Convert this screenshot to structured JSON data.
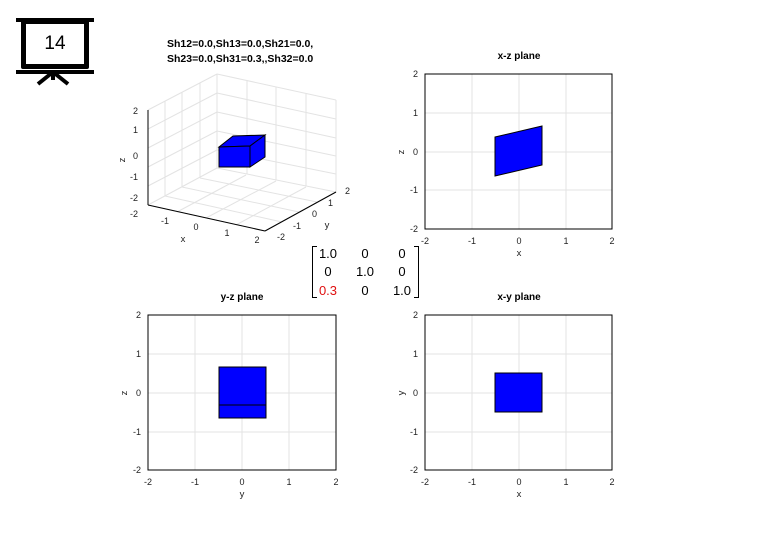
{
  "slide": {
    "number": "14"
  },
  "main_title": {
    "line1": "Sh12=0.0,Sh13=0.0,Sh21=0.0,",
    "line2": "Sh23=0.0,Sh31=0.3,,Sh32=0.0"
  },
  "plot3d": {
    "xlabel": "x",
    "ylabel": "y",
    "zlabel": "z",
    "x_ticks": [
      "-2",
      "-1",
      "0",
      "1",
      "2"
    ],
    "y_ticks": [
      "-2",
      "-1",
      "0",
      "1",
      "2"
    ],
    "z_ticks": [
      "-2",
      "-1",
      "0",
      "1",
      "2"
    ]
  },
  "xz": {
    "title": "x-z plane",
    "xlabel": "x",
    "ylabel": "z",
    "xticks": [
      "-2",
      "-1",
      "0",
      "1",
      "2"
    ],
    "yticks": [
      "-2",
      "-1",
      "0",
      "1",
      "2"
    ]
  },
  "yz": {
    "title": "y-z plane",
    "xlabel": "y",
    "ylabel": "z",
    "xticks": [
      "-2",
      "-1",
      "0",
      "1",
      "2"
    ],
    "yticks": [
      "-2",
      "-1",
      "0",
      "1",
      "2"
    ]
  },
  "xy": {
    "title": "x-y plane",
    "xlabel": "x",
    "ylabel": "y",
    "xticks": [
      "-2",
      "-1",
      "0",
      "1",
      "2"
    ],
    "yticks": [
      "-2",
      "-1",
      "0",
      "1",
      "2"
    ]
  },
  "matrix": {
    "rows": [
      [
        "1.0",
        "0",
        "0"
      ],
      [
        "0",
        "1.0",
        "0"
      ],
      [
        "0.3",
        "0",
        "1.0"
      ]
    ],
    "highlight_color": "#e01010"
  },
  "colors": {
    "shape_fill": "#0000ff",
    "grid": "#e3e3e3",
    "axis": "#000000"
  }
}
